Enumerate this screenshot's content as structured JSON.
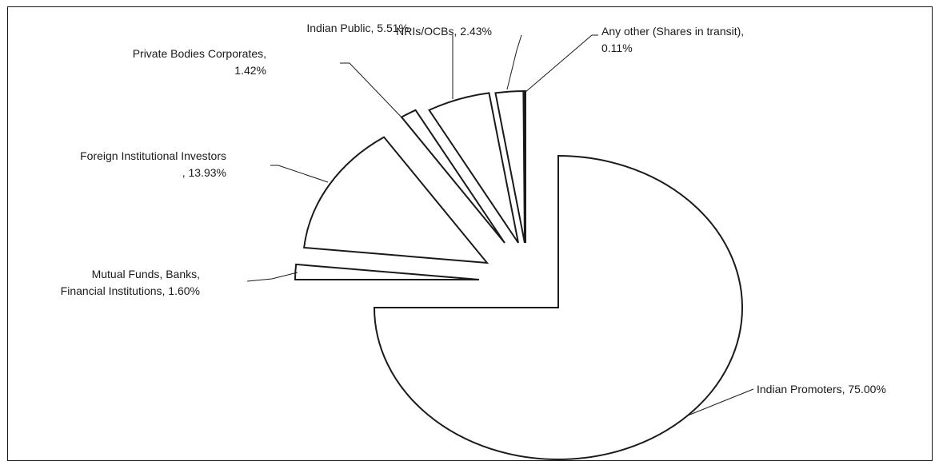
{
  "chart_data": {
    "type": "pie",
    "exploded": true,
    "legend": "none",
    "slices": [
      {
        "label_lines": [
          "Indian Promoters, 75.00%"
        ],
        "value": 75.0
      },
      {
        "label_lines": [
          "Mutual Funds, Banks,",
          "Financial Institutions, 1.60%"
        ],
        "value": 1.6
      },
      {
        "label_lines": [
          "Foreign Institutional Investors",
          ", 13.93%"
        ],
        "value": 13.93
      },
      {
        "label_lines": [
          "Private Bodies Corporates,",
          "1.42%"
        ],
        "value": 1.42
      },
      {
        "label_lines": [
          "Indian Public, 5.51%"
        ],
        "value": 5.51
      },
      {
        "label_lines": [
          "NRIs/OCBs, 2.43%"
        ],
        "value": 2.43
      },
      {
        "label_lines": [
          "Any other (Shares in transit),",
          "0.11%"
        ],
        "value": 0.11
      }
    ]
  }
}
